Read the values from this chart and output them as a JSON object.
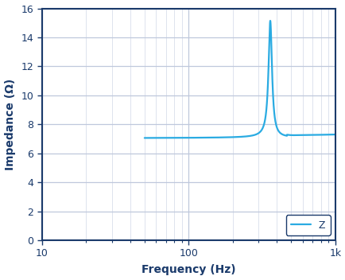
{
  "xlabel": "Frequency (Hz)",
  "ylabel": "Impedance (Ω)",
  "xlim": [
    10,
    1000
  ],
  "ylim": [
    0,
    16
  ],
  "yticks": [
    0,
    2,
    4,
    6,
    8,
    10,
    12,
    14,
    16
  ],
  "line_color": "#2AABE2",
  "line_width": 1.6,
  "legend_label": "Z",
  "background_color": "#FFFFFF",
  "grid_color_major": "#BFC8DC",
  "grid_color_minor": "#D0D8E8",
  "axis_label_color": "#1A3A6B",
  "tick_label_color": "#1A3A6B",
  "spine_color": "#1A3A6B",
  "resonance_freq": 360,
  "resonance_peak": 15.1,
  "base_impedance": 7.05,
  "post_resonance": 7.25,
  "figsize": [
    4.35,
    3.52
  ],
  "dpi": 100
}
